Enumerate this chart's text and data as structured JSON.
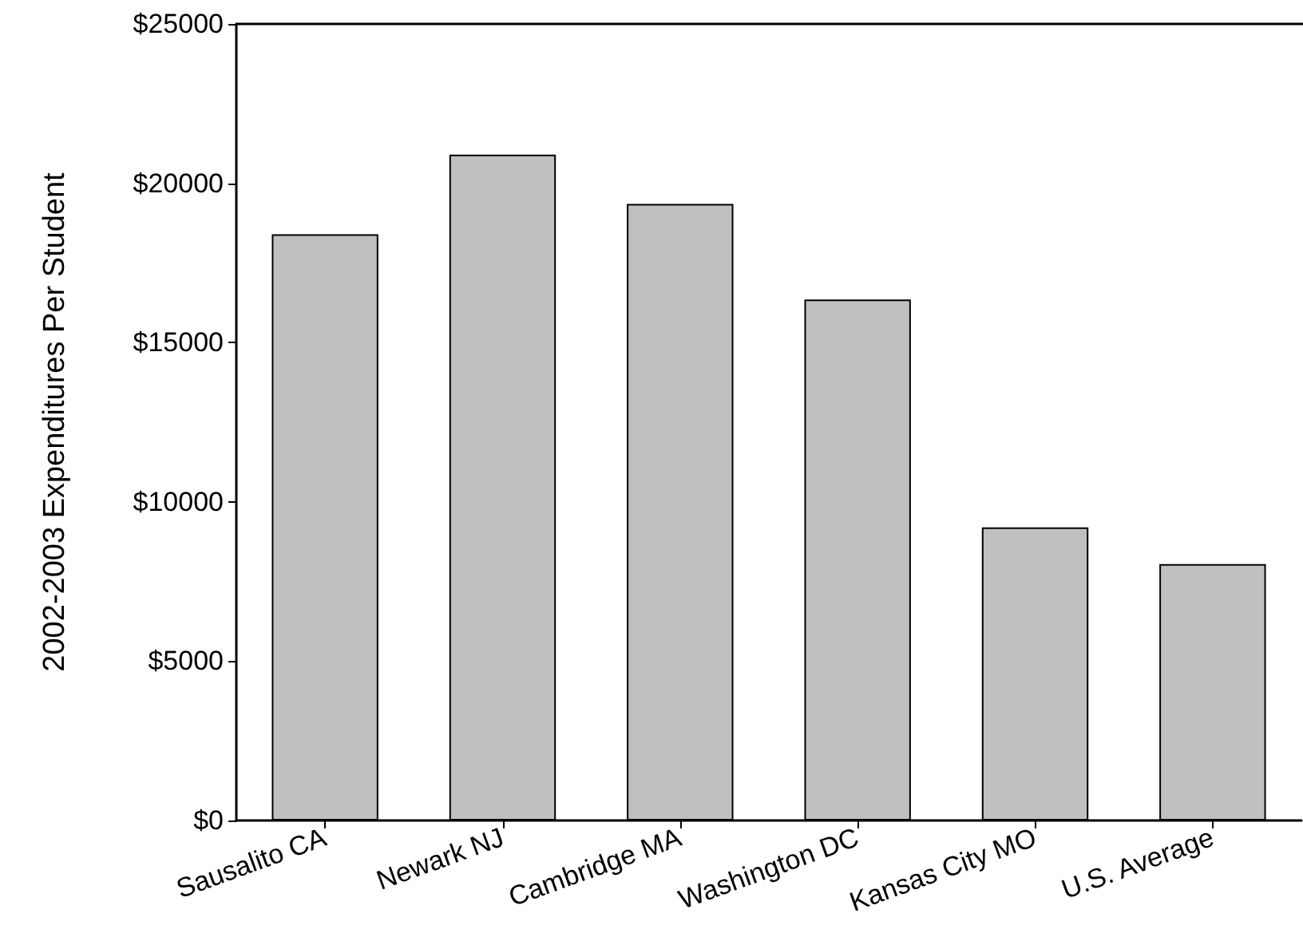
{
  "chart_data": {
    "type": "bar",
    "ylabel": "2002-2003 Expenditures Per Student",
    "categories": [
      "Sausalito CA",
      "Newark NJ",
      "Cambridge MA",
      "Washington DC",
      "Kansas City MO",
      "U.S. Average"
    ],
    "values": [
      18400,
      20900,
      19350,
      16350,
      9200,
      8050
    ],
    "color": "#c0c0c0",
    "ylim": [
      0,
      25000
    ],
    "yticks": [
      {
        "value": 0,
        "label": "$0"
      },
      {
        "value": 5000,
        "label": "$5000"
      },
      {
        "value": 10000,
        "label": "$10000"
      },
      {
        "value": 15000,
        "label": "$15000"
      },
      {
        "value": 20000,
        "label": "$20000"
      },
      {
        "value": 25000,
        "label": "$25000"
      }
    ],
    "grid": false
  }
}
